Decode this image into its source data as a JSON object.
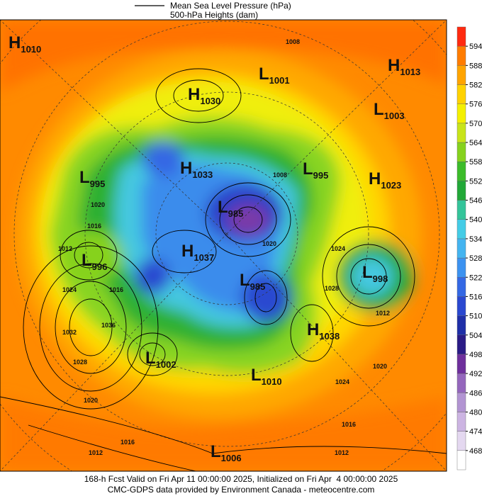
{
  "header": {
    "legend_lines": [
      "Mean Sea Level Pressure (hPa)",
      "500-hPa Heights (dam)"
    ]
  },
  "colorbar": {
    "ticks": [
      468,
      474,
      480,
      486,
      492,
      498,
      504,
      510,
      516,
      522,
      528,
      534,
      540,
      546,
      552,
      558,
      564,
      570,
      576,
      582,
      588,
      594
    ],
    "colors": [
      "#ffffff",
      "#e4d8f0",
      "#ccb4e2",
      "#b294d2",
      "#9466bc",
      "#6e2f9c",
      "#2a1b86",
      "#1f2fa8",
      "#2a48d0",
      "#3468e4",
      "#3c92f0",
      "#44b4f0",
      "#44cce6",
      "#34c49a",
      "#22a838",
      "#3cbc2a",
      "#86d21e",
      "#c8e41a",
      "#f4f000",
      "#ffd200",
      "#ffa400",
      "#ff7c00",
      "#ff2a10"
    ]
  },
  "centers": [
    {
      "letter": "H",
      "value": 1010
    },
    {
      "letter": "L",
      "value": 1001
    },
    {
      "letter": "H",
      "value": 1013
    },
    {
      "letter": "H",
      "value": 1030
    },
    {
      "letter": "L",
      "value": 1003
    },
    {
      "letter": "H",
      "value": 1033
    },
    {
      "letter": "L",
      "value": 995
    },
    {
      "letter": "H",
      "value": 1023
    },
    {
      "letter": "L",
      "value": 995
    },
    {
      "letter": "L",
      "value": 985
    },
    {
      "letter": "H",
      "value": 1037
    },
    {
      "letter": "L",
      "value": 996
    },
    {
      "letter": "L",
      "value": 998
    },
    {
      "letter": "L",
      "value": 985
    },
    {
      "letter": "H",
      "value": 1038
    },
    {
      "letter": "L",
      "value": 1002
    },
    {
      "letter": "L",
      "value": 1010
    },
    {
      "letter": "L",
      "value": 1006
    }
  ],
  "isobar_labels": [
    1008,
    1008,
    1020,
    1016,
    1012,
    1024,
    1016,
    1036,
    1032,
    1028,
    1020,
    1016,
    1012,
    1028,
    1024,
    1012,
    1020,
    1024,
    1016,
    1012,
    1020
  ],
  "footer": {
    "lines": [
      "168-h Fcst Valid on Fri Apr 11 00:00:00 2025, Initialized on Fri Apr  4 00:00:00 2025",
      "CMC-GDPS data provided by Environment Canada - meteocentre.com"
    ]
  }
}
